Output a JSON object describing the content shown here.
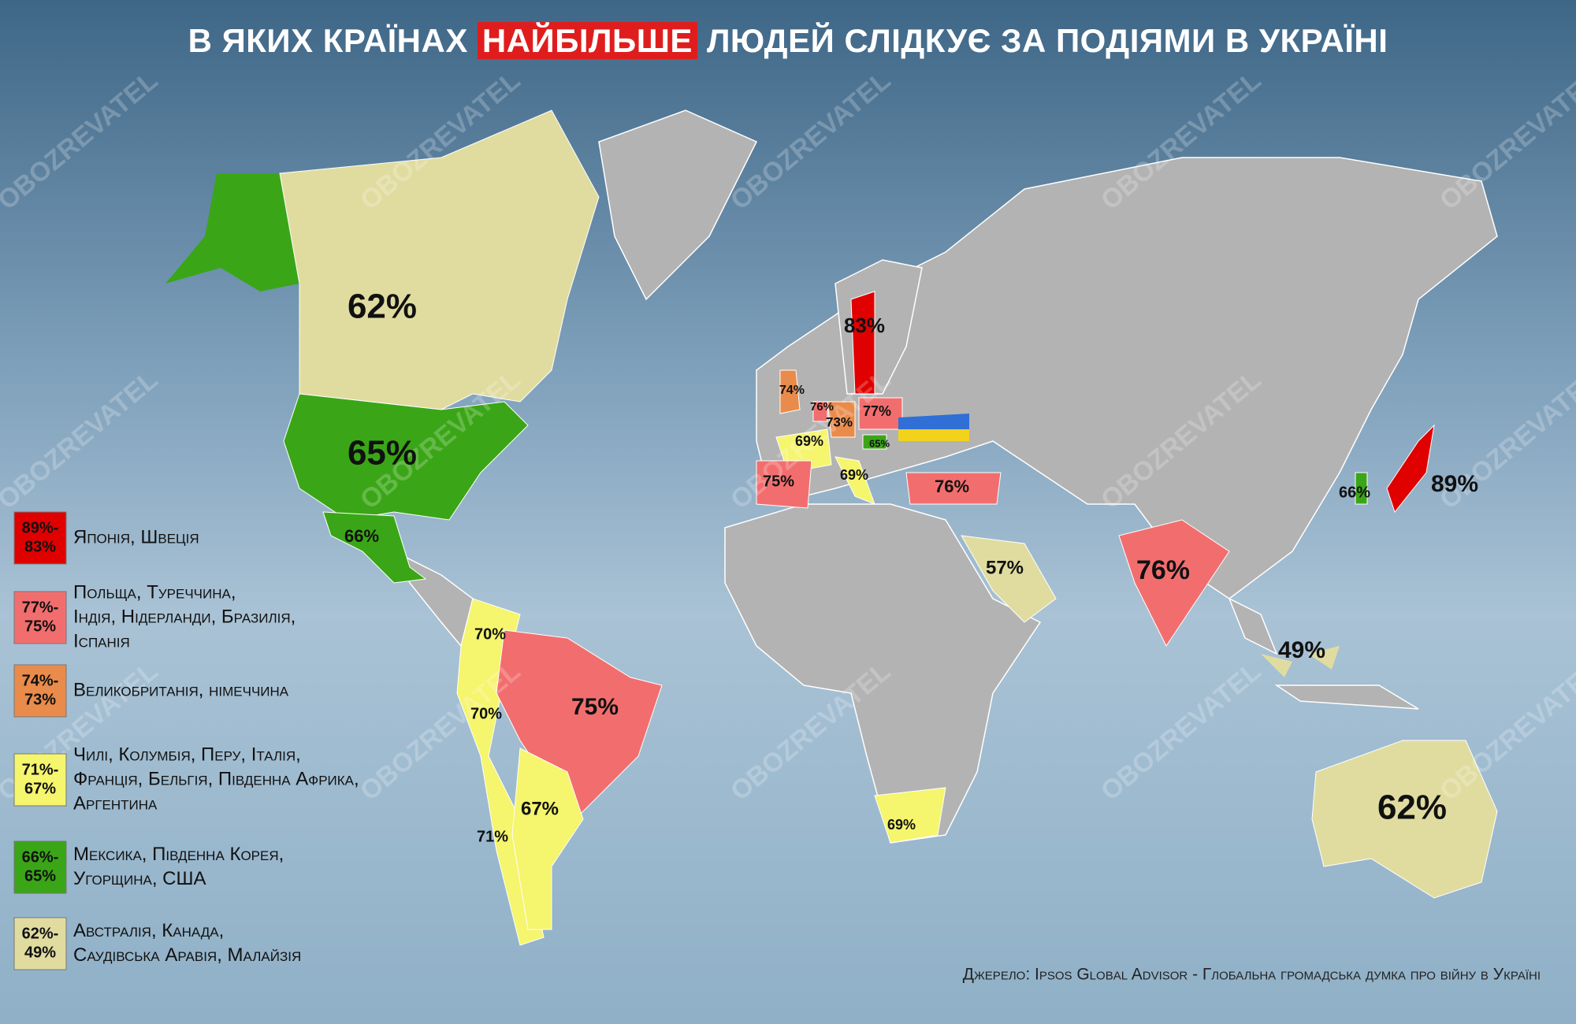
{
  "title": {
    "before": "В ЯКИХ КРАЇНАХ",
    "highlight": "НАЙБІЛЬШЕ",
    "after": "ЛЮДЕЙ СЛІДКУЄ ЗА ПОДІЯМИ В УКРАЇНІ"
  },
  "watermark": "OBOZREVATEL",
  "legend": [
    {
      "range": [
        "89%-",
        "83%"
      ],
      "countries": [
        "Японія, Швеція"
      ]
    },
    {
      "range": [
        "77%-",
        "75%"
      ],
      "countries": [
        "Польща, Туреччина,",
        "Індія, Нідерланди, Бразилія,",
        "Іспанія"
      ]
    },
    {
      "range": [
        "74%-",
        "73%"
      ],
      "countries": [
        "Великобританія, німеччина"
      ]
    },
    {
      "range": [
        "71%-",
        "67%"
      ],
      "countries": [
        "Чилі, Колумбія, Перу, Італія,",
        "Франція, Бельгія, Південна Африка,",
        "Аргентина"
      ]
    },
    {
      "range": [
        "66%-",
        "65%"
      ],
      "countries": [
        "Мексика, Південна Корея,",
        "Угорщина, США"
      ]
    },
    {
      "range": [
        "62%-",
        "49%"
      ],
      "countries": [
        "Австралія, Канада,",
        "Саудівська Аравія, Малайзія"
      ]
    }
  ],
  "map_labels": [
    "62%",
    "65%",
    "66%",
    "83%",
    "74%",
    "76%",
    "73%",
    "77%",
    "69%",
    "65%",
    "75%",
    "69%",
    "76%",
    "57%",
    "76%",
    "66%",
    "89%",
    "49%",
    "62%",
    "70%",
    "70%",
    "75%",
    "67%",
    "71%",
    "69%"
  ],
  "source": "Джерело: Ipsos Global Advisor - Глобальна громадська думка про війну в Україні"
}
